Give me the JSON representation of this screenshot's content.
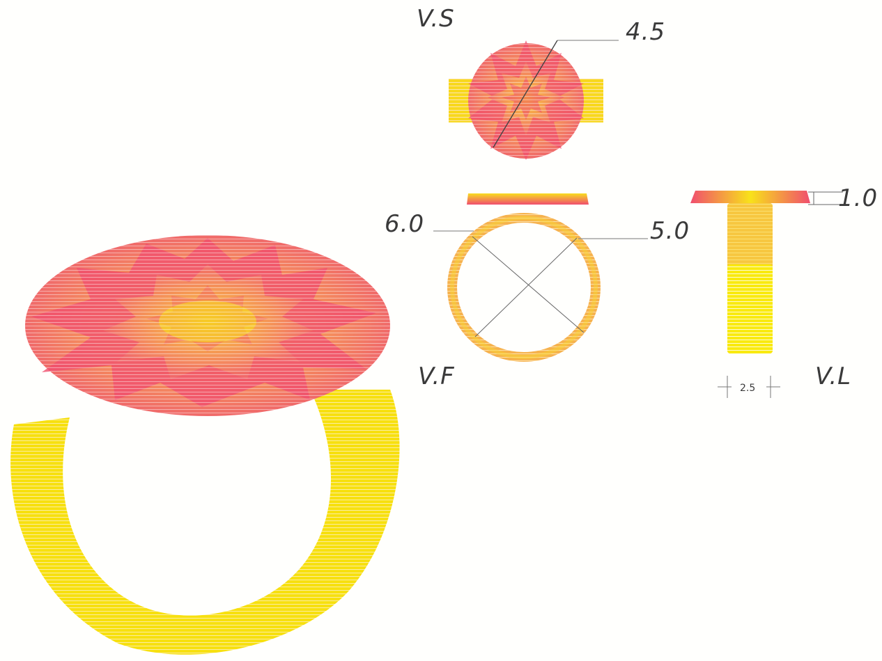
{
  "colors": {
    "gold": "#f7e800",
    "gold_dark": "#f2c20a",
    "orange": "#f7a24a",
    "pink": "#f0506e",
    "line": "#555555"
  },
  "labels": {
    "top_view": "V.S",
    "front_view": "V.F",
    "side_view": "V.L"
  },
  "dimensions": {
    "top_diameter": "4.5",
    "outer_diameter": "6.0",
    "inner_diameter": "5.0",
    "plate_thickness": "1.0",
    "band_width": "2.5"
  }
}
